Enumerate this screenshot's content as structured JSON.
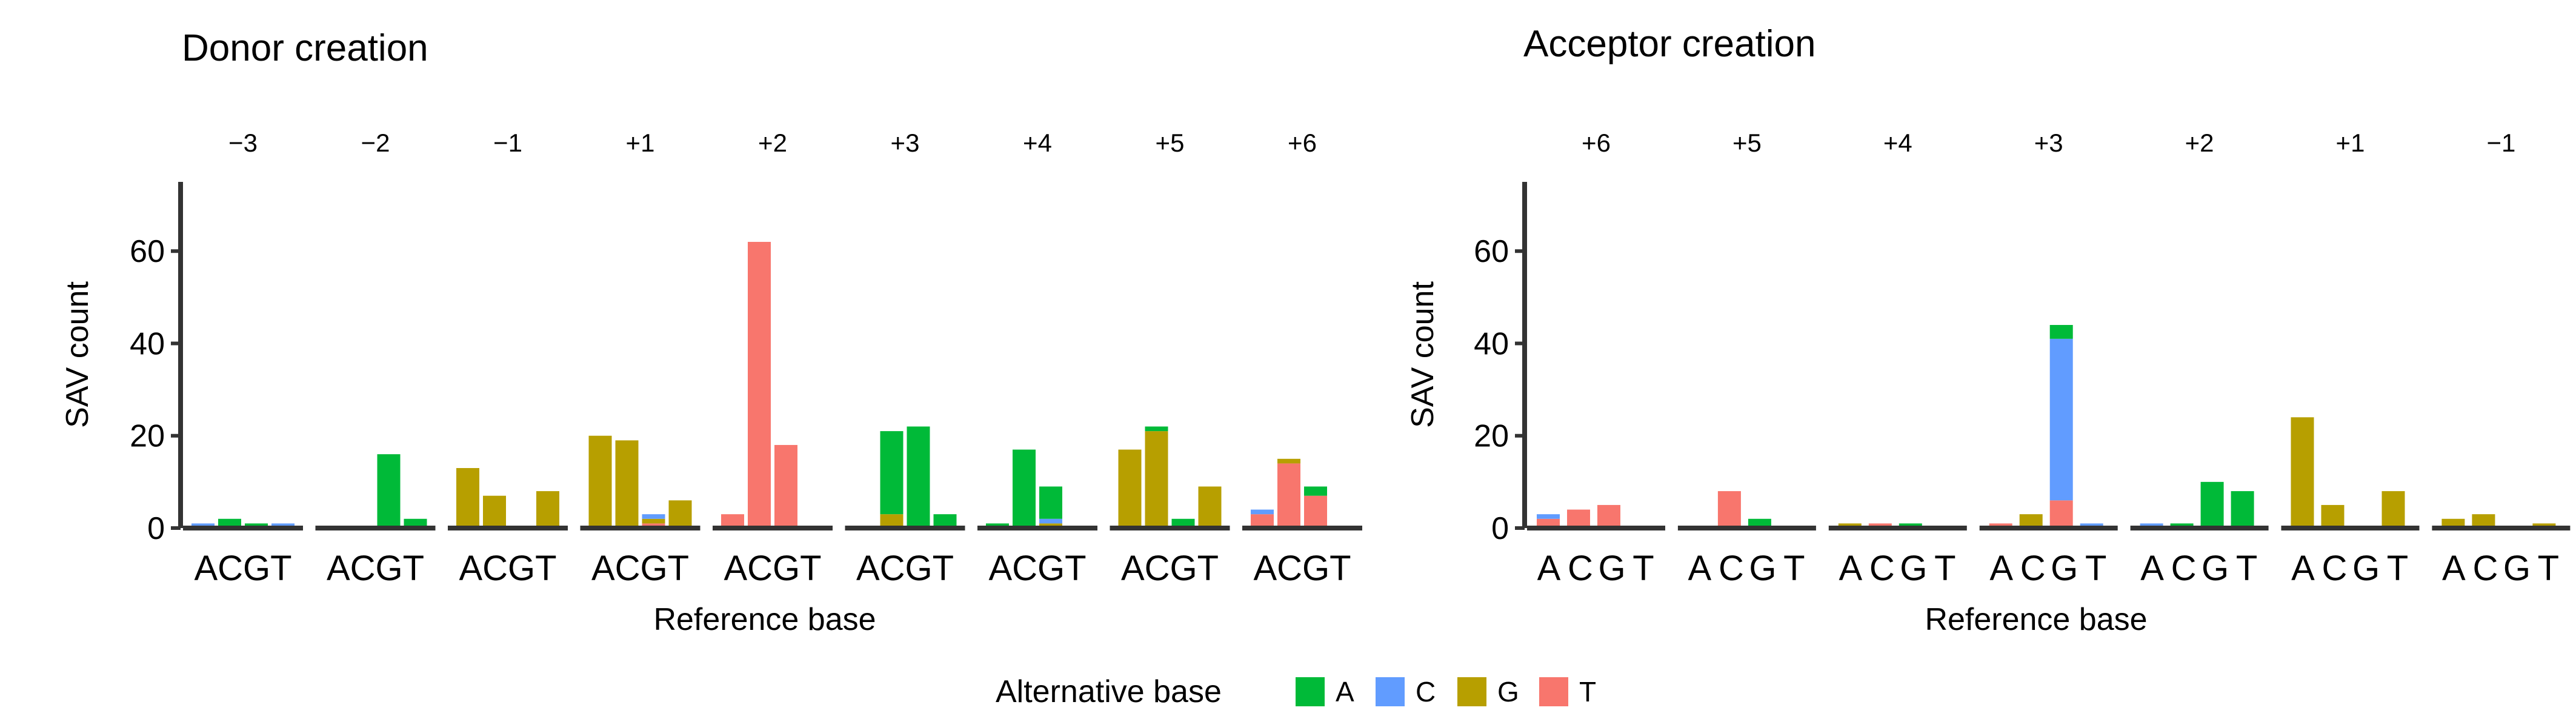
{
  "legend": {
    "title": "Alternative base",
    "entries": [
      {
        "label": "A",
        "color": "#00BA38"
      },
      {
        "label": "C",
        "color": "#619CFF"
      },
      {
        "label": "G",
        "color": "#B79F00"
      },
      {
        "label": "T",
        "color": "#F8766D"
      }
    ]
  },
  "chart_data": [
    {
      "type": "bar",
      "stacked": true,
      "title": "Donor creation",
      "xlabel": "Reference base",
      "ylabel": "SAV count",
      "ylim": [
        0,
        75
      ],
      "yticks": [
        0,
        20,
        40,
        60
      ],
      "grid": false,
      "categories": [
        "A",
        "C",
        "G",
        "T"
      ],
      "facets": [
        {
          "label": "−3",
          "bars": [
            {
              "C": 1
            },
            {
              "A": 2
            },
            {
              "A": 1
            },
            {
              "C": 1
            }
          ]
        },
        {
          "label": "−2",
          "bars": [
            {},
            {},
            {
              "A": 16
            },
            {
              "A": 2
            }
          ]
        },
        {
          "label": "−1",
          "bars": [
            {
              "G": 13
            },
            {
              "G": 7
            },
            {},
            {
              "G": 8
            }
          ]
        },
        {
          "label": "+1",
          "bars": [
            {
              "G": 20
            },
            {
              "G": 19
            },
            {
              "T": 1,
              "G": 1,
              "C": 1
            },
            {
              "G": 6
            }
          ]
        },
        {
          "label": "+2",
          "bars": [
            {
              "T": 3
            },
            {
              "T": 62
            },
            {
              "T": 18
            },
            {}
          ]
        },
        {
          "label": "+3",
          "bars": [
            {},
            {
              "G": 3,
              "A": 18
            },
            {
              "A": 22
            },
            {
              "A": 3
            }
          ]
        },
        {
          "label": "+4",
          "bars": [
            {
              "A": 1
            },
            {
              "A": 17
            },
            {
              "G": 1,
              "C": 1,
              "A": 7
            },
            {}
          ]
        },
        {
          "label": "+5",
          "bars": [
            {
              "G": 17
            },
            {
              "G": 21,
              "A": 1
            },
            {
              "A": 2
            },
            {
              "G": 9
            }
          ]
        },
        {
          "label": "+6",
          "bars": [
            {
              "T": 3,
              "C": 1
            },
            {
              "T": 14,
              "G": 1
            },
            {
              "T": 7,
              "A": 2
            },
            {}
          ]
        }
      ]
    },
    {
      "type": "bar",
      "stacked": true,
      "title": "Acceptor creation",
      "xlabel": "Reference base",
      "ylabel": "SAV count",
      "ylim": [
        0,
        75
      ],
      "yticks": [
        0,
        20,
        40,
        60
      ],
      "grid": false,
      "categories": [
        "A",
        "C",
        "G",
        "T"
      ],
      "facets": [
        {
          "label": "+6",
          "bars": [
            {
              "T": 2,
              "C": 1
            },
            {
              "T": 4
            },
            {
              "T": 5
            },
            {}
          ]
        },
        {
          "label": "+5",
          "bars": [
            {},
            {
              "T": 8
            },
            {
              "A": 2
            },
            {}
          ]
        },
        {
          "label": "+4",
          "bars": [
            {
              "G": 1
            },
            {
              "T": 1
            },
            {
              "A": 1
            },
            {}
          ]
        },
        {
          "label": "+3",
          "bars": [
            {
              "T": 1
            },
            {
              "G": 3
            },
            {
              "T": 6,
              "C": 35,
              "A": 3
            },
            {
              "C": 1
            }
          ]
        },
        {
          "label": "+2",
          "bars": [
            {
              "C": 1
            },
            {
              "A": 1
            },
            {
              "A": 10
            },
            {
              "A": 8
            }
          ]
        },
        {
          "label": "+1",
          "bars": [
            {
              "G": 24
            },
            {
              "G": 5
            },
            {},
            {
              "G": 8
            }
          ]
        },
        {
          "label": "−1",
          "bars": [
            {
              "G": 2
            },
            {
              "G": 3
            },
            {},
            {
              "G": 1
            }
          ]
        }
      ]
    }
  ]
}
